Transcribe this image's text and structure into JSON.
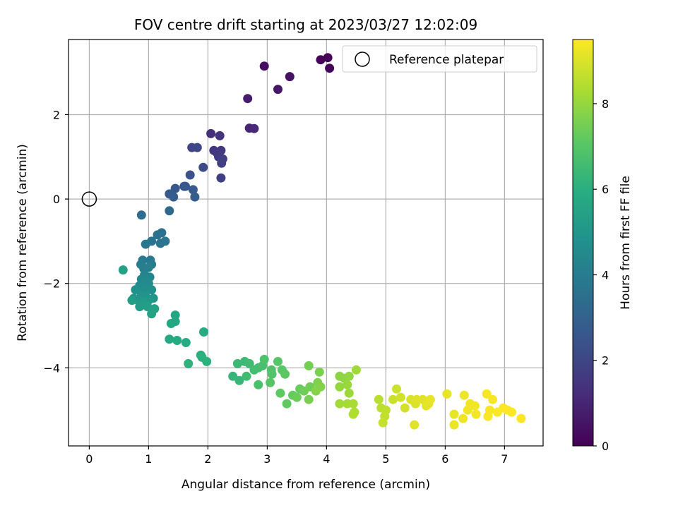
{
  "chart_data": {
    "type": "scatter",
    "title": "FOV centre drift starting at 2023/03/27 12:02:09",
    "xlabel": "Angular distance from reference (arcmin)",
    "ylabel": "Rotation from reference (arcmin)",
    "xlim": [
      -0.35,
      7.65
    ],
    "ylim": [
      -5.85,
      3.78
    ],
    "xticks": [
      0,
      1,
      2,
      3,
      4,
      5,
      6,
      7
    ],
    "yticks": [
      -4,
      -2,
      0,
      2
    ],
    "grid": true,
    "legend": {
      "placement": "top-right",
      "entries": [
        "Reference platepar"
      ]
    },
    "colorbar": {
      "label": "Hours from first FF file",
      "range": [
        0,
        9.5
      ],
      "ticks": [
        0,
        2,
        4,
        6,
        8
      ],
      "colormap": "viridis"
    },
    "reference_point": {
      "x": 0,
      "y": 0
    },
    "points": [
      [
        3.9,
        3.3,
        0.05
      ],
      [
        4.02,
        3.35,
        0.1
      ],
      [
        4.05,
        3.1,
        0.15
      ],
      [
        2.95,
        3.15,
        0.4
      ],
      [
        3.38,
        2.9,
        0.5
      ],
      [
        3.18,
        2.6,
        0.6
      ],
      [
        2.67,
        2.38,
        0.75
      ],
      [
        2.7,
        1.68,
        1.0
      ],
      [
        2.78,
        1.67,
        1.1
      ],
      [
        2.05,
        1.55,
        1.3
      ],
      [
        2.2,
        1.5,
        1.4
      ],
      [
        2.1,
        1.15,
        1.5
      ],
      [
        2.15,
        1.1,
        1.55
      ],
      [
        2.22,
        1.15,
        1.6
      ],
      [
        2.18,
        1.0,
        1.65
      ],
      [
        2.25,
        0.95,
        1.7
      ],
      [
        2.23,
        0.85,
        1.75
      ],
      [
        2.22,
        0.5,
        1.8
      ],
      [
        1.73,
        1.22,
        2.0
      ],
      [
        1.82,
        1.22,
        2.05
      ],
      [
        1.92,
        0.75,
        2.2
      ],
      [
        1.7,
        0.57,
        2.4
      ],
      [
        1.6,
        0.3,
        2.5
      ],
      [
        1.45,
        0.25,
        2.55
      ],
      [
        1.62,
        0.3,
        2.6
      ],
      [
        1.35,
        0.12,
        2.7
      ],
      [
        1.75,
        0.22,
        2.75
      ],
      [
        1.42,
        0.05,
        2.8
      ],
      [
        1.78,
        0.05,
        2.85
      ],
      [
        1.35,
        -0.28,
        3.3
      ],
      [
        0.88,
        -0.38,
        3.4
      ],
      [
        1.22,
        -0.8,
        3.5
      ],
      [
        1.15,
        -0.85,
        3.55
      ],
      [
        1.05,
        -1.0,
        3.6
      ],
      [
        1.2,
        -1.05,
        3.65
      ],
      [
        1.28,
        -1.0,
        3.7
      ],
      [
        0.95,
        -1.07,
        3.75
      ],
      [
        0.9,
        -1.45,
        3.9
      ],
      [
        1.03,
        -1.45,
        3.95
      ],
      [
        1.05,
        -1.55,
        4.0
      ],
      [
        0.87,
        -1.55,
        4.05
      ],
      [
        0.92,
        -1.65,
        4.1
      ],
      [
        1.0,
        -1.62,
        4.15
      ],
      [
        0.93,
        -1.8,
        4.2
      ],
      [
        1.02,
        -1.85,
        4.3
      ],
      [
        0.88,
        -1.9,
        4.4
      ],
      [
        0.95,
        -1.95,
        4.5
      ],
      [
        1.0,
        -2.0,
        4.55
      ],
      [
        0.85,
        -2.05,
        4.6
      ],
      [
        0.97,
        -2.1,
        4.65
      ],
      [
        0.9,
        -2.2,
        4.7
      ],
      [
        1.05,
        -2.15,
        4.75
      ],
      [
        0.78,
        -2.15,
        4.8
      ],
      [
        0.88,
        -2.28,
        4.85
      ],
      [
        0.95,
        -2.3,
        4.9
      ],
      [
        1.08,
        -2.35,
        4.95
      ],
      [
        0.75,
        -2.35,
        5.0
      ],
      [
        0.82,
        -2.4,
        5.05
      ],
      [
        0.9,
        -2.45,
        5.1
      ],
      [
        1.0,
        -2.4,
        5.15
      ],
      [
        0.85,
        -2.55,
        5.2
      ],
      [
        0.92,
        -2.5,
        5.25
      ],
      [
        0.72,
        -2.4,
        5.3
      ],
      [
        0.98,
        -2.55,
        5.35
      ],
      [
        1.1,
        -2.6,
        5.4
      ],
      [
        1.05,
        -2.72,
        5.45
      ],
      [
        0.57,
        -1.68,
        5.5
      ],
      [
        1.45,
        -2.75,
        5.6
      ],
      [
        1.45,
        -2.9,
        5.65
      ],
      [
        1.38,
        -2.95,
        5.7
      ],
      [
        1.35,
        -3.32,
        5.75
      ],
      [
        1.48,
        -3.35,
        5.8
      ],
      [
        1.63,
        -3.4,
        5.85
      ],
      [
        1.93,
        -3.15,
        5.9
      ],
      [
        1.88,
        -3.7,
        6.0
      ],
      [
        1.9,
        -3.75,
        6.05
      ],
      [
        1.98,
        -3.85,
        6.1
      ],
      [
        1.67,
        -3.9,
        6.15
      ],
      [
        2.42,
        -4.2,
        6.3
      ],
      [
        2.53,
        -4.3,
        6.35
      ],
      [
        2.5,
        -3.9,
        6.4
      ],
      [
        2.62,
        -3.85,
        6.45
      ],
      [
        2.7,
        -3.9,
        6.5
      ],
      [
        2.65,
        -4.2,
        6.55
      ],
      [
        2.78,
        -4.05,
        6.6
      ],
      [
        2.85,
        -4.0,
        6.65
      ],
      [
        2.92,
        -3.95,
        6.7
      ],
      [
        2.85,
        -4.4,
        6.75
      ],
      [
        2.95,
        -3.8,
        6.8
      ],
      [
        3.07,
        -4.05,
        6.85
      ],
      [
        3.08,
        -4.15,
        6.9
      ],
      [
        3.05,
        -4.35,
        6.95
      ],
      [
        3.18,
        -3.85,
        7.0
      ],
      [
        3.25,
        -4.05,
        7.05
      ],
      [
        3.3,
        -4.15,
        7.1
      ],
      [
        3.22,
        -4.6,
        7.15
      ],
      [
        3.33,
        -4.85,
        7.2
      ],
      [
        3.43,
        -4.65,
        7.25
      ],
      [
        3.55,
        -4.5,
        7.3
      ],
      [
        3.5,
        -4.7,
        7.35
      ],
      [
        3.62,
        -4.55,
        7.4
      ],
      [
        3.72,
        -4.45,
        7.45
      ],
      [
        3.7,
        -3.95,
        7.5
      ],
      [
        3.7,
        -4.75,
        7.55
      ],
      [
        3.88,
        -4.1,
        7.6
      ],
      [
        3.85,
        -4.35,
        7.65
      ],
      [
        3.9,
        -4.45,
        7.7
      ],
      [
        3.82,
        -4.55,
        7.75
      ],
      [
        4.22,
        -4.2,
        7.85
      ],
      [
        4.3,
        -4.25,
        7.9
      ],
      [
        4.38,
        -4.2,
        7.95
      ],
      [
        4.22,
        -4.45,
        8.0
      ],
      [
        4.35,
        -4.4,
        8.05
      ],
      [
        4.38,
        -4.6,
        8.1
      ],
      [
        4.5,
        -4.05,
        8.15
      ],
      [
        4.22,
        -4.85,
        8.2
      ],
      [
        4.35,
        -4.85,
        8.25
      ],
      [
        4.45,
        -4.85,
        8.3
      ],
      [
        4.47,
        -5.05,
        8.35
      ],
      [
        4.45,
        -5.1,
        8.4
      ],
      [
        4.88,
        -4.75,
        8.5
      ],
      [
        4.92,
        -4.95,
        8.55
      ],
      [
        5.0,
        -5.0,
        8.6
      ],
      [
        4.98,
        -5.15,
        8.65
      ],
      [
        4.95,
        -5.3,
        8.7
      ],
      [
        5.12,
        -4.75,
        8.75
      ],
      [
        5.18,
        -4.5,
        8.8
      ],
      [
        5.25,
        -4.7,
        8.85
      ],
      [
        5.32,
        -4.95,
        8.9
      ],
      [
        5.42,
        -4.75,
        8.95
      ],
      [
        5.5,
        -4.85,
        9.0
      ],
      [
        5.52,
        -4.75,
        9.05
      ],
      [
        5.48,
        -5.35,
        9.1
      ],
      [
        5.62,
        -4.75,
        9.12
      ],
      [
        5.68,
        -4.9,
        9.14
      ],
      [
        5.72,
        -4.85,
        9.16
      ],
      [
        5.75,
        -4.75,
        9.18
      ],
      [
        6.03,
        -4.62,
        9.2
      ],
      [
        6.15,
        -5.1,
        9.22
      ],
      [
        6.15,
        -5.35,
        9.24
      ],
      [
        6.32,
        -4.65,
        9.26
      ],
      [
        6.3,
        -5.2,
        9.28
      ],
      [
        6.38,
        -5.0,
        9.3
      ],
      [
        6.42,
        -4.85,
        9.32
      ],
      [
        6.5,
        -4.9,
        9.34
      ],
      [
        6.52,
        -5.1,
        9.36
      ],
      [
        6.7,
        -4.62,
        9.38
      ],
      [
        6.8,
        -4.75,
        9.4
      ],
      [
        6.75,
        -5.0,
        9.42
      ],
      [
        6.72,
        -5.15,
        9.44
      ],
      [
        6.88,
        -5.05,
        9.46
      ],
      [
        6.98,
        -4.95,
        9.48
      ],
      [
        7.05,
        -5.0,
        9.5
      ],
      [
        7.12,
        -5.05,
        9.5
      ],
      [
        7.28,
        -5.2,
        9.5
      ]
    ]
  }
}
